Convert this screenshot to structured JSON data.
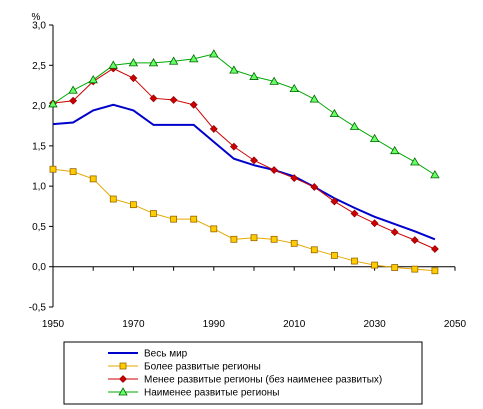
{
  "chart_data": {
    "type": "line",
    "unit_label": "%",
    "x_ticks": [
      1950,
      1970,
      1990,
      2010,
      2030,
      2050
    ],
    "y_ticks": [
      "3,0",
      "2,5",
      "2,0",
      "1,5",
      "1,0",
      "0,5",
      "0,0",
      "-0,5"
    ],
    "y_tick_values": [
      3.0,
      2.5,
      2.0,
      1.5,
      1.0,
      0.5,
      0.0,
      -0.5
    ],
    "xlim": [
      1950,
      2050
    ],
    "ylim": [
      -0.5,
      3.0
    ],
    "grid": false,
    "legend_position": "bottom",
    "series": [
      {
        "name": "Весь мир",
        "color": "#0000cc",
        "marker": "none",
        "x": [
          1950,
          1955,
          1960,
          1965,
          1970,
          1975,
          1980,
          1985,
          1990,
          1995,
          2000,
          2005,
          2010,
          2015,
          2020,
          2025,
          2030,
          2035,
          2040,
          2045
        ],
        "y": [
          1.77,
          1.79,
          1.94,
          2.01,
          1.94,
          1.76,
          1.76,
          1.76,
          1.55,
          1.34,
          1.26,
          1.2,
          1.12,
          0.99,
          0.85,
          0.73,
          0.62,
          0.53,
          0.44,
          0.34
        ]
      },
      {
        "name": "Более развитые регионы",
        "color": "#e6a800",
        "marker": "square",
        "x": [
          1950,
          1955,
          1960,
          1965,
          1970,
          1975,
          1980,
          1985,
          1990,
          1995,
          2000,
          2005,
          2010,
          2015,
          2020,
          2025,
          2030,
          2035,
          2040,
          2045
        ],
        "y": [
          1.21,
          1.18,
          1.09,
          0.84,
          0.77,
          0.66,
          0.59,
          0.59,
          0.47,
          0.34,
          0.36,
          0.34,
          0.29,
          0.21,
          0.14,
          0.07,
          0.02,
          -0.01,
          -0.03,
          -0.05
        ]
      },
      {
        "name": "Менее развитые регионы (без наименее развитых)",
        "color": "#cc0000",
        "marker": "diamond",
        "x": [
          1950,
          1955,
          1960,
          1965,
          1970,
          1975,
          1980,
          1985,
          1990,
          1995,
          2000,
          2005,
          2010,
          2015,
          2020,
          2025,
          2030,
          2035,
          2040,
          2045
        ],
        "y": [
          2.03,
          2.06,
          2.3,
          2.46,
          2.34,
          2.09,
          2.07,
          2.01,
          1.71,
          1.49,
          1.32,
          1.2,
          1.1,
          0.99,
          0.81,
          0.66,
          0.54,
          0.43,
          0.33,
          0.22
        ]
      },
      {
        "name": "Наименее развитые регионы",
        "color": "#00aa00",
        "marker": "triangle",
        "x": [
          1950,
          1955,
          1960,
          1965,
          1970,
          1975,
          1980,
          1985,
          1990,
          1995,
          2000,
          2005,
          2010,
          2015,
          2020,
          2025,
          2030,
          2035,
          2040,
          2045
        ],
        "y": [
          2.02,
          2.19,
          2.32,
          2.5,
          2.53,
          2.53,
          2.55,
          2.58,
          2.64,
          2.44,
          2.36,
          2.3,
          2.21,
          2.08,
          1.9,
          1.74,
          1.59,
          1.44,
          1.3,
          1.14
        ]
      }
    ]
  }
}
